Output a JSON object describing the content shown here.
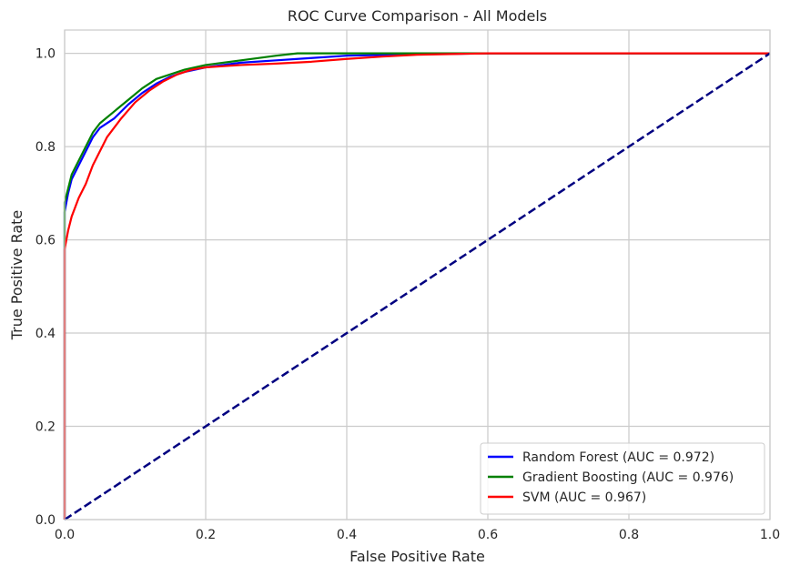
{
  "chart_data": {
    "type": "line",
    "title": "ROC Curve Comparison - All Models",
    "xlabel": "False Positive Rate",
    "ylabel": "True Positive Rate",
    "xlim": [
      0.0,
      1.0
    ],
    "ylim": [
      0.0,
      1.05
    ],
    "xticks": [
      0.0,
      0.2,
      0.4,
      0.6,
      0.8,
      1.0
    ],
    "yticks": [
      0.0,
      0.2,
      0.4,
      0.6,
      0.8,
      1.0
    ],
    "xtick_labels": [
      "0.0",
      "0.2",
      "0.4",
      "0.6",
      "0.8",
      "1.0"
    ],
    "ytick_labels": [
      "0.0",
      "0.2",
      "0.4",
      "0.6",
      "0.8",
      "1.0"
    ],
    "grid": true,
    "legend_position": "lower-right",
    "series": [
      {
        "name": "Random Forest (AUC = 0.972)",
        "color": "#0000ff",
        "x": [
          0.0,
          0.0,
          0.005,
          0.01,
          0.02,
          0.03,
          0.04,
          0.05,
          0.07,
          0.09,
          0.11,
          0.13,
          0.15,
          0.17,
          0.2,
          0.25,
          0.3,
          0.35,
          0.4,
          0.5,
          0.6,
          1.0
        ],
        "y": [
          0.0,
          0.66,
          0.7,
          0.73,
          0.76,
          0.79,
          0.82,
          0.84,
          0.86,
          0.89,
          0.915,
          0.935,
          0.95,
          0.96,
          0.97,
          0.98,
          0.985,
          0.99,
          0.995,
          0.998,
          1.0,
          1.0
        ]
      },
      {
        "name": "Gradient Boosting (AUC = 0.976)",
        "color": "#008000",
        "x": [
          0.0,
          0.0,
          0.005,
          0.01,
          0.02,
          0.03,
          0.04,
          0.05,
          0.07,
          0.09,
          0.11,
          0.13,
          0.15,
          0.17,
          0.2,
          0.25,
          0.3,
          0.33,
          0.4,
          0.5,
          1.0
        ],
        "y": [
          0.0,
          0.68,
          0.71,
          0.74,
          0.77,
          0.8,
          0.83,
          0.85,
          0.875,
          0.9,
          0.925,
          0.945,
          0.955,
          0.965,
          0.975,
          0.985,
          0.995,
          1.0,
          1.0,
          1.0,
          1.0
        ]
      },
      {
        "name": "SVM (AUC = 0.967)",
        "color": "#ff0000",
        "x": [
          0.0,
          0.0,
          0.005,
          0.01,
          0.02,
          0.03,
          0.04,
          0.05,
          0.06,
          0.08,
          0.1,
          0.12,
          0.14,
          0.16,
          0.18,
          0.2,
          0.25,
          0.3,
          0.35,
          0.4,
          0.45,
          0.5,
          0.6,
          1.0
        ],
        "y": [
          0.0,
          0.58,
          0.62,
          0.65,
          0.69,
          0.72,
          0.76,
          0.79,
          0.82,
          0.86,
          0.895,
          0.92,
          0.94,
          0.955,
          0.965,
          0.97,
          0.975,
          0.978,
          0.982,
          0.988,
          0.993,
          0.997,
          1.0,
          1.0
        ]
      },
      {
        "name": "",
        "color": "#000080",
        "dashed": true,
        "x": [
          0.0,
          1.0
        ],
        "y": [
          0.0,
          1.0
        ]
      }
    ]
  }
}
